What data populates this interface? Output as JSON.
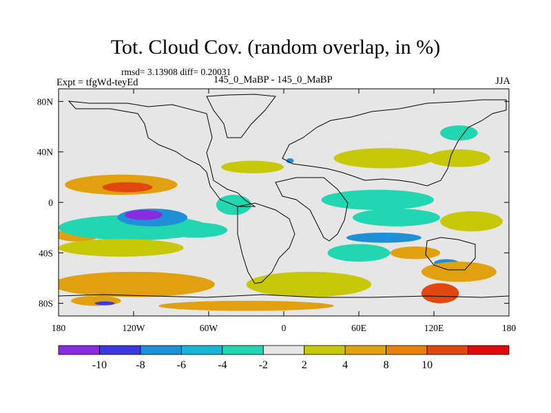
{
  "title": "Tot. Cloud Cov. (random overlap, in %)",
  "stats": "rmsd= 3.13908 diff= 0.20031",
  "left_label": "Expt = tfgWd-teyEd",
  "center_label": "145_0_MaBP - 145_0_MaBP",
  "right_label": "JJA",
  "colorbar": {
    "colors": [
      "#8a2be2",
      "#3a3ae0",
      "#1e90d8",
      "#18b4d8",
      "#21d6b0",
      "#e6e6e6",
      "#c8c80a",
      "#e0a010",
      "#e8800e",
      "#e04810",
      "#e00a0a"
    ],
    "labels": [
      "-10",
      "-8",
      "-6",
      "-4",
      "-2",
      "2",
      "4",
      "8",
      "10"
    ]
  },
  "chart_data": {
    "type": "heatmap",
    "title": "Tot. Cloud Cov. (random overlap, in %)",
    "xlabel": "",
    "ylabel": "",
    "xlim": [
      -180,
      180
    ],
    "ylim": [
      -90,
      90
    ],
    "x_ticks": [
      {
        "value": -180,
        "label": "180"
      },
      {
        "value": -120,
        "label": "120W"
      },
      {
        "value": -60,
        "label": "60W"
      },
      {
        "value": 0,
        "label": "0"
      },
      {
        "value": 60,
        "label": "60E"
      },
      {
        "value": 120,
        "label": "120E"
      },
      {
        "value": 180,
        "label": "180"
      }
    ],
    "y_ticks": [
      {
        "value": 80,
        "label": "80N"
      },
      {
        "value": 40,
        "label": "40N"
      },
      {
        "value": 0,
        "label": "0"
      },
      {
        "value": -40,
        "label": "40S"
      },
      {
        "value": -80,
        "label": "80S"
      }
    ],
    "contour_levels": [
      -10,
      -8,
      -6,
      -4,
      -2,
      2,
      4,
      8,
      10
    ],
    "background_value": 0,
    "features": [
      {
        "lon": -130,
        "lat": 14,
        "rx": 45,
        "ry": 8,
        "value": 5
      },
      {
        "lon": -125,
        "lat": 12,
        "rx": 20,
        "ry": 4,
        "value": 10
      },
      {
        "lon": -165,
        "lat": -26,
        "rx": 18,
        "ry": 5,
        "value": 5
      },
      {
        "lon": -120,
        "lat": -20,
        "rx": 60,
        "ry": 10,
        "value": -3
      },
      {
        "lon": -105,
        "lat": -12,
        "rx": 28,
        "ry": 7,
        "value": -7
      },
      {
        "lon": -112,
        "lat": -10,
        "rx": 15,
        "ry": 4,
        "value": -11
      },
      {
        "lon": -70,
        "lat": -22,
        "rx": 25,
        "ry": 6,
        "value": -4
      },
      {
        "lon": -130,
        "lat": -36,
        "rx": 50,
        "ry": 7,
        "value": 3
      },
      {
        "lon": -120,
        "lat": -65,
        "rx": 65,
        "ry": 10,
        "value": 6
      },
      {
        "lon": -150,
        "lat": -78,
        "rx": 20,
        "ry": 4,
        "value": 6
      },
      {
        "lon": -143,
        "lat": -80,
        "rx": 8,
        "ry": 1.5,
        "value": -9
      },
      {
        "lon": -40,
        "lat": -2,
        "rx": 14,
        "ry": 8,
        "value": -3
      },
      {
        "lon": -25,
        "lat": 28,
        "rx": 25,
        "ry": 5,
        "value": 3
      },
      {
        "lon": 5,
        "lat": 33,
        "rx": 3,
        "ry": 2,
        "value": -7
      },
      {
        "lon": 80,
        "lat": 35,
        "rx": 40,
        "ry": 8,
        "value": 3
      },
      {
        "lon": 140,
        "lat": 35,
        "rx": 25,
        "ry": 7,
        "value": 3
      },
      {
        "lon": 140,
        "lat": 55,
        "rx": 15,
        "ry": 6,
        "value": -3
      },
      {
        "lon": 75,
        "lat": 2,
        "rx": 45,
        "ry": 8,
        "value": -3
      },
      {
        "lon": 90,
        "lat": -12,
        "rx": 35,
        "ry": 7,
        "value": -4
      },
      {
        "lon": 80,
        "lat": -28,
        "rx": 30,
        "ry": 4,
        "value": -8
      },
      {
        "lon": 60,
        "lat": -40,
        "rx": 25,
        "ry": 7,
        "value": -3
      },
      {
        "lon": 105,
        "lat": -40,
        "rx": 20,
        "ry": 5,
        "value": 6
      },
      {
        "lon": 130,
        "lat": -48,
        "rx": 10,
        "ry": 3,
        "value": -8
      },
      {
        "lon": 140,
        "lat": -55,
        "rx": 30,
        "ry": 8,
        "value": 6
      },
      {
        "lon": 125,
        "lat": -72,
        "rx": 15,
        "ry": 8,
        "value": 10
      },
      {
        "lon": 150,
        "lat": -15,
        "rx": 25,
        "ry": 8,
        "value": 3
      },
      {
        "lon": 20,
        "lat": -65,
        "rx": 50,
        "ry": 10,
        "value": 3
      },
      {
        "lon": -30,
        "lat": -82,
        "rx": 70,
        "ry": 4,
        "value": 5
      }
    ]
  }
}
